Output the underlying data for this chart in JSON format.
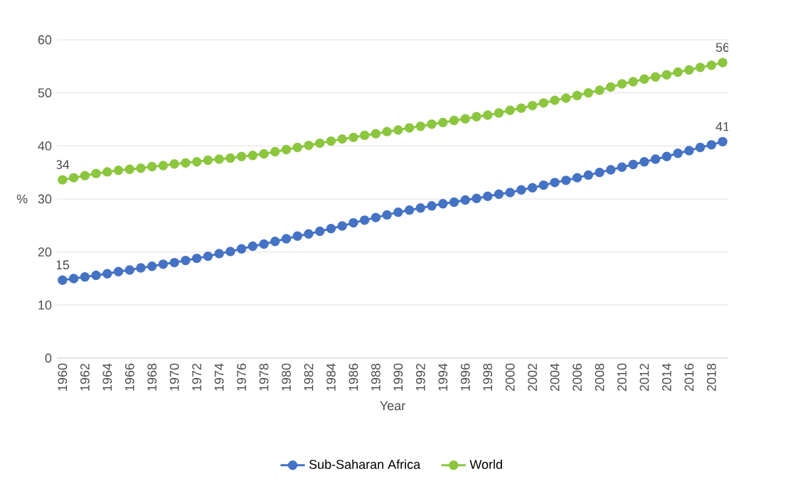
{
  "chart_data": {
    "type": "line",
    "xlabel": "Year",
    "ylabel": "%",
    "categories": [
      "1960",
      null,
      "1962",
      null,
      "1964",
      null,
      "1966",
      null,
      "1968",
      null,
      "1970",
      null,
      "1972",
      null,
      "1974",
      null,
      "1976",
      null,
      "1978",
      null,
      "1980",
      null,
      "1982",
      null,
      "1984",
      null,
      "1986",
      null,
      "1988",
      null,
      "1990",
      null,
      "1992",
      null,
      "1994",
      null,
      "1996",
      null,
      "1998",
      null,
      "2000",
      null,
      "2002",
      null,
      "2004",
      null,
      "2006",
      null,
      "2008",
      null,
      "2010",
      null,
      "2012",
      null,
      "2014",
      null,
      "2016",
      null,
      "2018",
      null
    ],
    "series": [
      {
        "name": "Sub-Saharan Africa",
        "color": "#4472c4",
        "values": [
          14.7,
          15.0,
          15.3,
          15.6,
          15.9,
          16.3,
          16.6,
          17.0,
          17.3,
          17.7,
          18.0,
          18.4,
          18.8,
          19.2,
          19.7,
          20.1,
          20.6,
          21.1,
          21.5,
          22.0,
          22.5,
          23.0,
          23.4,
          23.9,
          24.4,
          24.9,
          25.5,
          26.0,
          26.5,
          27.0,
          27.5,
          27.9,
          28.3,
          28.7,
          29.1,
          29.4,
          29.8,
          30.1,
          30.5,
          30.9,
          31.2,
          31.7,
          32.1,
          32.6,
          33.1,
          33.5,
          34.0,
          34.5,
          35.0,
          35.5,
          36.0,
          36.5,
          37.0,
          37.5,
          38.0,
          38.6,
          39.1,
          39.7,
          40.2,
          40.8
        ],
        "value_labels": [
          "15",
          null,
          null,
          null,
          null,
          null,
          null,
          null,
          null,
          null,
          null,
          null,
          null,
          null,
          null,
          null,
          null,
          null,
          null,
          null,
          null,
          null,
          null,
          null,
          null,
          null,
          null,
          null,
          null,
          null,
          null,
          null,
          null,
          null,
          null,
          null,
          null,
          null,
          null,
          null,
          null,
          null,
          null,
          null,
          null,
          null,
          null,
          null,
          null,
          null,
          null,
          null,
          null,
          null,
          null,
          null,
          null,
          null,
          null,
          "41"
        ]
      },
      {
        "name": "World",
        "color": "#8cc63f",
        "values": [
          33.6,
          34.0,
          34.4,
          34.8,
          35.1,
          35.4,
          35.6,
          35.8,
          36.1,
          36.3,
          36.6,
          36.8,
          37.0,
          37.3,
          37.5,
          37.7,
          38.0,
          38.2,
          38.5,
          38.9,
          39.3,
          39.7,
          40.1,
          40.5,
          40.9,
          41.3,
          41.6,
          42.0,
          42.3,
          42.7,
          43.0,
          43.4,
          43.7,
          44.1,
          44.4,
          44.8,
          45.1,
          45.5,
          45.8,
          46.2,
          46.7,
          47.1,
          47.6,
          48.1,
          48.6,
          49.0,
          49.5,
          50.0,
          50.5,
          51.1,
          51.7,
          52.1,
          52.6,
          53.0,
          53.4,
          53.9,
          54.3,
          54.8,
          55.2,
          55.7
        ],
        "value_labels": [
          "34",
          null,
          null,
          null,
          null,
          null,
          null,
          null,
          null,
          null,
          null,
          null,
          null,
          null,
          null,
          null,
          null,
          null,
          null,
          null,
          null,
          null,
          null,
          null,
          null,
          null,
          null,
          null,
          null,
          null,
          null,
          null,
          null,
          null,
          null,
          null,
          null,
          null,
          null,
          null,
          null,
          null,
          null,
          null,
          null,
          null,
          null,
          null,
          null,
          null,
          null,
          null,
          null,
          null,
          null,
          null,
          null,
          null,
          null,
          "56"
        ]
      }
    ],
    "ylim": [
      0,
      60
    ],
    "yticks": [
      0,
      10,
      20,
      30,
      40,
      50,
      60
    ],
    "grid": "y",
    "legend": "bottom",
    "marker": "circle",
    "line_style": "solid"
  }
}
